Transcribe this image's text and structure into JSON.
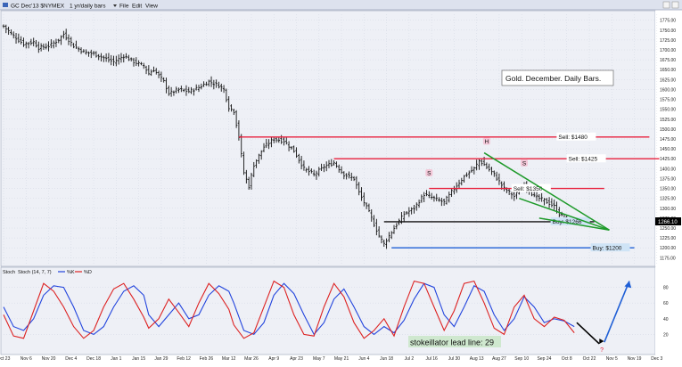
{
  "toolbar": {
    "symbol_title": "GC Dec'13 $NYMEX",
    "period": "1 yr/daily bars",
    "menus": [
      "File",
      "Edit",
      "View"
    ]
  },
  "colors": {
    "sell_line": "#e8203c",
    "buy_1266": "#111111",
    "buy_1200": "#1f5fd6",
    "wedge": "#1e9a2a",
    "bars": "#111111",
    "stoch_fast": "#2244dd",
    "stoch_slow": "#dd2222",
    "panel_bg": "#eef0f6",
    "annot_arrow_down": "#000000",
    "annot_arrow_up": "#1f5fd6",
    "question_mark": "#e8203c"
  },
  "chart_data": [
    {
      "type": "ohlc-bar",
      "title": "Gold. December. Daily Bars.",
      "ylim": [
        1160,
        1790
      ],
      "yticks": [
        1175,
        1200,
        1225,
        1250,
        1275,
        1300,
        1325,
        1350,
        1375,
        1400,
        1425,
        1450,
        1475,
        1500,
        1525,
        1550,
        1575,
        1600,
        1625,
        1650,
        1675,
        1700,
        1725,
        1750,
        1775
      ],
      "current_price_label": "1266.10",
      "x_tick_labels": [
        "Oct 23",
        "Nov 6",
        "Nov 20",
        "Dec 4",
        "Dec 18",
        "Jan 1",
        "Jan 15",
        "Jan 29",
        "Feb 12",
        "Feb 26",
        "Mar 12",
        "Mar 26",
        "Apr 9",
        "Apr 23",
        "May 7",
        "May 21",
        "Jun 4",
        "Jun 18",
        "Jul 2",
        "Jul 16",
        "Jul 30",
        "Aug 13",
        "Aug 27",
        "Sep 10",
        "Sep 24",
        "Oct 8",
        "Oct 22",
        "Nov 5",
        "Nov 19",
        "Dec 3"
      ],
      "price_path": [
        [
          0,
          1760
        ],
        [
          4,
          1735
        ],
        [
          8,
          1715
        ],
        [
          12,
          1720
        ],
        [
          14,
          1705
        ],
        [
          18,
          1710
        ],
        [
          22,
          1725
        ],
        [
          24,
          1740
        ],
        [
          28,
          1710
        ],
        [
          32,
          1695
        ],
        [
          36,
          1690
        ],
        [
          40,
          1680
        ],
        [
          44,
          1670
        ],
        [
          48,
          1685
        ],
        [
          52,
          1670
        ],
        [
          56,
          1660
        ],
        [
          58,
          1640
        ],
        [
          60,
          1650
        ],
        [
          64,
          1620
        ],
        [
          66,
          1590
        ],
        [
          70,
          1600
        ],
        [
          74,
          1595
        ],
        [
          78,
          1605
        ],
        [
          82,
          1620
        ],
        [
          86,
          1610
        ],
        [
          88,
          1600
        ],
        [
          90,
          1555
        ],
        [
          92,
          1545
        ],
        [
          94,
          1480
        ],
        [
          96,
          1390
        ],
        [
          98,
          1355
        ],
        [
          100,
          1410
        ],
        [
          104,
          1455
        ],
        [
          108,
          1475
        ],
        [
          112,
          1470
        ],
        [
          116,
          1445
        ],
        [
          120,
          1400
        ],
        [
          124,
          1385
        ],
        [
          128,
          1405
        ],
        [
          132,
          1415
        ],
        [
          136,
          1385
        ],
        [
          140,
          1375
        ],
        [
          142,
          1340
        ],
        [
          146,
          1290
        ],
        [
          150,
          1230
        ],
        [
          152,
          1210
        ],
        [
          156,
          1250
        ],
        [
          160,
          1285
        ],
        [
          164,
          1300
        ],
        [
          168,
          1335
        ],
        [
          172,
          1325
        ],
        [
          176,
          1315
        ],
        [
          180,
          1350
        ],
        [
          184,
          1380
        ],
        [
          188,
          1400
        ],
        [
          190,
          1420
        ],
        [
          192,
          1410
        ],
        [
          196,
          1385
        ],
        [
          200,
          1350
        ],
        [
          204,
          1330
        ],
        [
          208,
          1360
        ],
        [
          212,
          1330
        ],
        [
          216,
          1320
        ],
        [
          220,
          1305
        ],
        [
          222,
          1285
        ],
        [
          226,
          1266
        ]
      ],
      "levels": [
        {
          "label": "Sell: $1480",
          "value": 1480,
          "color_key": "sell_line",
          "x_start": 94,
          "x_end": 258
        },
        {
          "label": "Sell: $1425",
          "value": 1425,
          "color_key": "sell_line",
          "x_start": 132,
          "x_end": 262
        },
        {
          "label": "Sell: $1350",
          "value": 1350,
          "color_key": "sell_line",
          "x_start": 170,
          "x_end": 240
        },
        {
          "label": "Buy: $1266",
          "value": 1266,
          "color_key": "buy_1266",
          "x_start": 152,
          "x_end": 236
        },
        {
          "label": "Buy: $1200",
          "value": 1200,
          "color_key": "buy_1200",
          "x_start": 155,
          "x_end": 252
        }
      ],
      "wedge": {
        "upper": [
          [
            192,
            1440
          ],
          [
            242,
            1245
          ]
        ],
        "lower": [
          [
            206,
            1325
          ],
          [
            242,
            1245
          ]
        ],
        "base": [
          [
            214,
            1275
          ],
          [
            242,
            1245
          ]
        ]
      },
      "pattern_labels": [
        {
          "text": "S",
          "x": 170,
          "y": 1385
        },
        {
          "text": "H",
          "x": 193,
          "y": 1465
        },
        {
          "text": "S",
          "x": 208,
          "y": 1410
        }
      ]
    },
    {
      "type": "line",
      "title": "Stoch",
      "legend": [
        "Stoch (14, 7, 7)",
        "%K",
        "%D"
      ],
      "ylim": [
        0,
        100
      ],
      "yticks": [
        20,
        40,
        60,
        80
      ],
      "annotation": "stokeillator lead line: 29",
      "question_mark": "?",
      "series": [
        {
          "name": "%K",
          "color_key": "stoch_fast",
          "points": [
            [
              0,
              55
            ],
            [
              4,
              30
            ],
            [
              8,
              25
            ],
            [
              12,
              40
            ],
            [
              16,
              70
            ],
            [
              20,
              82
            ],
            [
              24,
              80
            ],
            [
              28,
              55
            ],
            [
              32,
              25
            ],
            [
              36,
              20
            ],
            [
              40,
              30
            ],
            [
              44,
              55
            ],
            [
              48,
              75
            ],
            [
              52,
              82
            ],
            [
              56,
              70
            ],
            [
              58,
              45
            ],
            [
              62,
              30
            ],
            [
              66,
              45
            ],
            [
              70,
              60
            ],
            [
              74,
              40
            ],
            [
              78,
              45
            ],
            [
              82,
              70
            ],
            [
              86,
              82
            ],
            [
              90,
              75
            ],
            [
              92,
              60
            ],
            [
              96,
              25
            ],
            [
              100,
              20
            ],
            [
              104,
              35
            ],
            [
              108,
              70
            ],
            [
              112,
              85
            ],
            [
              116,
              72
            ],
            [
              120,
              45
            ],
            [
              124,
              20
            ],
            [
              128,
              35
            ],
            [
              132,
              65
            ],
            [
              136,
              78
            ],
            [
              140,
              55
            ],
            [
              144,
              30
            ],
            [
              148,
              20
            ],
            [
              152,
              30
            ],
            [
              156,
              22
            ],
            [
              160,
              38
            ],
            [
              164,
              65
            ],
            [
              168,
              85
            ],
            [
              172,
              80
            ],
            [
              176,
              45
            ],
            [
              180,
              30
            ],
            [
              184,
              55
            ],
            [
              188,
              82
            ],
            [
              192,
              75
            ],
            [
              196,
              45
            ],
            [
              200,
              25
            ],
            [
              204,
              40
            ],
            [
              208,
              68
            ],
            [
              212,
              55
            ],
            [
              216,
              35
            ],
            [
              220,
              40
            ],
            [
              224,
              37
            ],
            [
              228,
              30
            ]
          ]
        },
        {
          "name": "%D",
          "color_key": "stoch_slow",
          "points": [
            [
              0,
              45
            ],
            [
              4,
              18
            ],
            [
              8,
              15
            ],
            [
              12,
              50
            ],
            [
              16,
              85
            ],
            [
              20,
              75
            ],
            [
              24,
              55
            ],
            [
              28,
              30
            ],
            [
              32,
              15
            ],
            [
              36,
              25
            ],
            [
              40,
              55
            ],
            [
              44,
              78
            ],
            [
              48,
              85
            ],
            [
              52,
              65
            ],
            [
              56,
              42
            ],
            [
              58,
              28
            ],
            [
              62,
              40
            ],
            [
              66,
              65
            ],
            [
              70,
              48
            ],
            [
              74,
              30
            ],
            [
              78,
              60
            ],
            [
              82,
              85
            ],
            [
              86,
              72
            ],
            [
              90,
              52
            ],
            [
              92,
              32
            ],
            [
              96,
              15
            ],
            [
              100,
              22
            ],
            [
              104,
              55
            ],
            [
              108,
              88
            ],
            [
              112,
              80
            ],
            [
              116,
              45
            ],
            [
              120,
              20
            ],
            [
              124,
              18
            ],
            [
              128,
              55
            ],
            [
              132,
              85
            ],
            [
              136,
              68
            ],
            [
              140,
              35
            ],
            [
              144,
              15
            ],
            [
              148,
              25
            ],
            [
              152,
              40
            ],
            [
              156,
              18
            ],
            [
              160,
              55
            ],
            [
              164,
              88
            ],
            [
              168,
              85
            ],
            [
              172,
              55
            ],
            [
              176,
              25
            ],
            [
              180,
              50
            ],
            [
              184,
              85
            ],
            [
              188,
              88
            ],
            [
              192,
              60
            ],
            [
              196,
              28
            ],
            [
              200,
              20
            ],
            [
              204,
              55
            ],
            [
              208,
              70
            ],
            [
              212,
              40
            ],
            [
              216,
              30
            ],
            [
              220,
              42
            ],
            [
              224,
              38
            ],
            [
              228,
              22
            ]
          ]
        }
      ]
    }
  ]
}
